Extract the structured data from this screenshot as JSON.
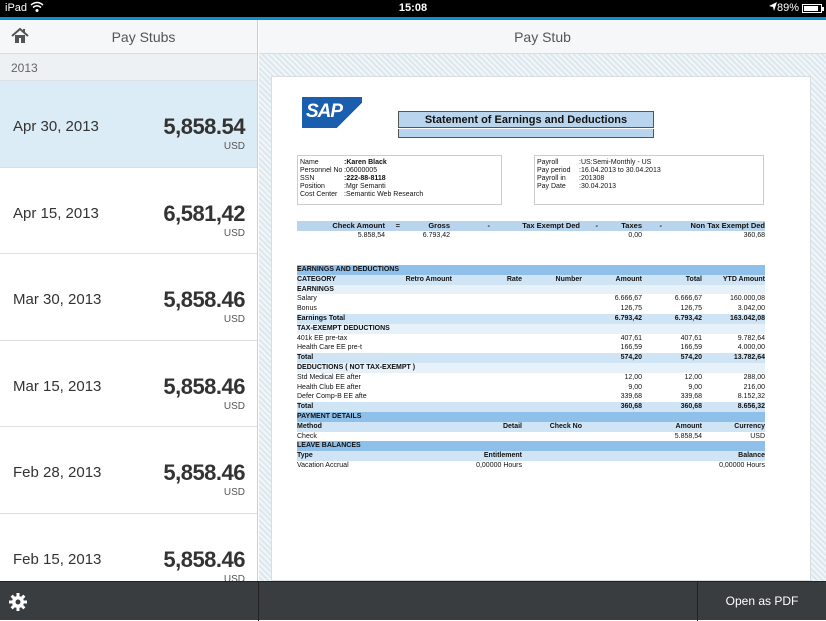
{
  "status": {
    "carrier": "iPad",
    "time": "15:08",
    "battery": "89%",
    "battery_level": 0.89
  },
  "left": {
    "title": "Pay Stubs",
    "group": "2013",
    "items": [
      {
        "date": "Apr 30, 2013",
        "amount": "5,858.54",
        "currency": "USD",
        "selected": true
      },
      {
        "date": "Apr 15, 2013",
        "amount": "6,581,42",
        "currency": "USD",
        "selected": false
      },
      {
        "date": "Mar 30, 2013",
        "amount": "5,858.46",
        "currency": "USD",
        "selected": false
      },
      {
        "date": "Mar 15, 2013",
        "amount": "5,858.46",
        "currency": "USD",
        "selected": false
      },
      {
        "date": "Feb 28, 2013",
        "amount": "5,858.46",
        "currency": "USD",
        "selected": false
      },
      {
        "date": "Feb 15, 2013",
        "amount": "5,858.46",
        "currency": "USD",
        "selected": false
      }
    ]
  },
  "right": {
    "title": "Pay Stub"
  },
  "doc": {
    "logo": "SAP",
    "title": "Statement of Earnings and Deductions",
    "employee": [
      {
        "k": "Name",
        "v": ":Karen Black",
        "bold": true
      },
      {
        "k": "Personnel No",
        "v": ":06000005",
        "bold": false
      },
      {
        "k": "SSN",
        "v": ":222-88-8118",
        "bold": true
      },
      {
        "k": "Position",
        "v": ":Mgr  Semanti",
        "bold": false
      },
      {
        "k": "Cost Center",
        "v": ":Semantic Web Research",
        "bold": false
      }
    ],
    "payroll": [
      {
        "k": "Payroll",
        "v": ":US:Semi-Monthly - US"
      },
      {
        "k": "Pay period",
        "v": ":16.04.2013 to 30.04.2013"
      },
      {
        "k": "Payroll in",
        "v": ":201308"
      },
      {
        "k": "Pay Date",
        "v": ":30.04.2013"
      }
    ],
    "summary": {
      "headers": [
        "Check Amount",
        "=",
        "Gross",
        "-",
        "Tax Exempt Ded",
        "-",
        "Taxes",
        "-",
        "Non Tax Exempt Ded"
      ],
      "values": [
        "5.858,54",
        "",
        "6.793,42",
        "",
        "",
        "",
        "0,00",
        "",
        "360,68"
      ]
    },
    "rows": [
      {
        "type": "sec",
        "cells": [
          "EARNINGS AND DEDUCTIONS",
          "",
          "",
          "",
          "",
          "",
          ""
        ]
      },
      {
        "type": "head",
        "cells": [
          "CATEGORY",
          "Retro Amount",
          "Rate",
          "Number",
          "Amount",
          "Total",
          "YTD Amount"
        ]
      },
      {
        "type": "sub",
        "cells": [
          "EARNINGS",
          "",
          "",
          "",
          "",
          "",
          ""
        ]
      },
      {
        "type": "row",
        "cells": [
          "Salary",
          "",
          "",
          "",
          "6.666,67",
          "6.666,67",
          "160.000,08"
        ]
      },
      {
        "type": "row",
        "cells": [
          "Bonus",
          "",
          "",
          "",
          "126,75",
          "126,75",
          "3.042,00"
        ]
      },
      {
        "type": "total",
        "cells": [
          "Earnings Total",
          "",
          "",
          "",
          "6.793,42",
          "6.793,42",
          "163.042,08"
        ]
      },
      {
        "type": "sub",
        "cells": [
          "TAX-EXEMPT DEDUCTIONS",
          "",
          "",
          "",
          "",
          "",
          ""
        ]
      },
      {
        "type": "row",
        "cells": [
          "401k EE pre-tax",
          "",
          "",
          "",
          "407,61",
          "407,61",
          "9.782,64"
        ]
      },
      {
        "type": "row",
        "cells": [
          "Health Care EE pre-t",
          "",
          "",
          "",
          "166,59",
          "166,59",
          "4.000,00"
        ]
      },
      {
        "type": "total",
        "cells": [
          "Total",
          "",
          "",
          "",
          "574,20",
          "574,20",
          "13.782,64"
        ]
      },
      {
        "type": "sub",
        "cells": [
          "DEDUCTIONS ( NOT TAX-EXEMPT )",
          "",
          "",
          "",
          "",
          "",
          ""
        ]
      },
      {
        "type": "row",
        "cells": [
          "Std Medical EE after",
          "",
          "",
          "",
          "12,00",
          "12,00",
          "288,00"
        ]
      },
      {
        "type": "row",
        "cells": [
          "Health Club EE after",
          "",
          "",
          "",
          "9,00",
          "9,00",
          "216,00"
        ]
      },
      {
        "type": "row",
        "cells": [
          "Defer Comp-B EE afte",
          "",
          "",
          "",
          "339,68",
          "339,68",
          "8.152,32"
        ]
      },
      {
        "type": "total",
        "cells": [
          "Total",
          "",
          "",
          "",
          "360,68",
          "360,68",
          "8.656,32"
        ]
      },
      {
        "type": "sec",
        "cells": [
          "PAYMENT DETAILS",
          "",
          "",
          "",
          "",
          "",
          ""
        ]
      },
      {
        "type": "head",
        "cells": [
          "Method",
          "",
          "Detail",
          "Check No",
          "",
          "Amount",
          "Currency"
        ]
      },
      {
        "type": "row",
        "cells": [
          "Check",
          "",
          "",
          "",
          "",
          "5.858,54",
          "USD"
        ]
      },
      {
        "type": "sec",
        "cells": [
          "LEAVE BALANCES",
          "",
          "",
          "",
          "",
          "",
          ""
        ]
      },
      {
        "type": "head",
        "cells": [
          "Type",
          "",
          "Entitlement",
          "",
          "",
          "",
          "Balance"
        ]
      },
      {
        "type": "row",
        "cells": [
          "Vacation Accrual",
          "",
          "0,00000 Hours",
          "",
          "",
          "",
          "0,00000 Hours"
        ]
      }
    ]
  },
  "bottom": {
    "open_pdf": "Open as PDF"
  }
}
